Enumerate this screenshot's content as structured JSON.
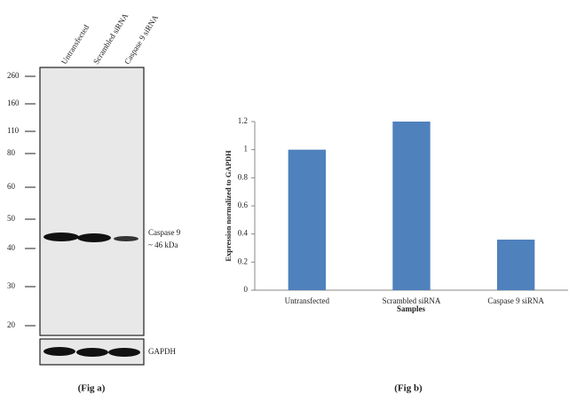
{
  "blot": {
    "lanes": [
      "Untransfected",
      "Scrambled siRNA",
      "Caspase 9 siRNA"
    ],
    "markers": [
      "260",
      "160",
      "110",
      "80",
      "60",
      "50",
      "40",
      "30",
      "20"
    ],
    "band_label": "Caspase 9",
    "band_size": "~  46 kDa",
    "loading_label": "GAPDH",
    "caption": "(Fig a)"
  },
  "chart_data": {
    "type": "bar",
    "caption": "(Fig b)",
    "x_label": "Samples",
    "y_label": "Expression  normalized to GAPDH",
    "categories": [
      "Untransfected",
      "Scrambled siRNA",
      "Caspase 9 siRNA"
    ],
    "values": [
      1.0,
      1.2,
      0.36
    ],
    "color": "#4f81bd",
    "ylim": [
      0,
      1.2
    ],
    "yticks": [
      0,
      0.2,
      0.4,
      0.6,
      0.8,
      1,
      1.2
    ],
    "grid": false
  }
}
